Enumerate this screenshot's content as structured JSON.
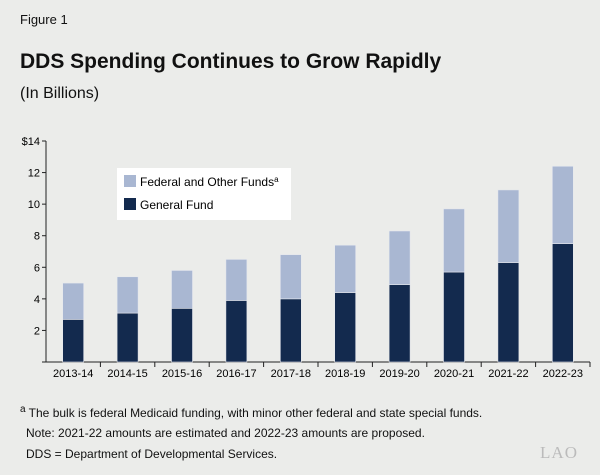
{
  "figure_label": "Figure 1",
  "title": "DDS Spending Continues to Grow Rapidly",
  "subtitle": "(In Billions)",
  "chart_data": {
    "type": "bar",
    "stacked": true,
    "categories": [
      "2013-14",
      "2014-15",
      "2015-16",
      "2016-17",
      "2017-18",
      "2018-19",
      "2019-20",
      "2020-21",
      "2021-22",
      "2022-23"
    ],
    "series": [
      {
        "name": "General Fund",
        "color": "#132a4e",
        "values": [
          2.7,
          3.1,
          3.4,
          3.9,
          4.0,
          4.4,
          4.9,
          5.7,
          6.3,
          7.5
        ]
      },
      {
        "name": "Federal and Other Funds",
        "superscript": "a",
        "color": "#a9b7d2",
        "values": [
          2.3,
          2.3,
          2.4,
          2.6,
          2.8,
          3.0,
          3.4,
          4.0,
          4.6,
          4.9
        ]
      }
    ],
    "ylim": [
      0,
      14
    ],
    "yticks": [
      "",
      "2",
      "4",
      "6",
      "8",
      "10",
      "12",
      "$14"
    ],
    "grid": false,
    "legend": "top-left"
  },
  "notes": [
    {
      "sup": "a",
      "text": " The bulk is federal Medicaid funding, with minor other federal and state special funds."
    },
    {
      "sup": "",
      "text": "Note: 2021-22 amounts are estimated and 2022-23 amounts are proposed."
    },
    {
      "sup": "",
      "text": "DDS = Department of Developmental Services."
    }
  ],
  "logo_text": "LAO"
}
